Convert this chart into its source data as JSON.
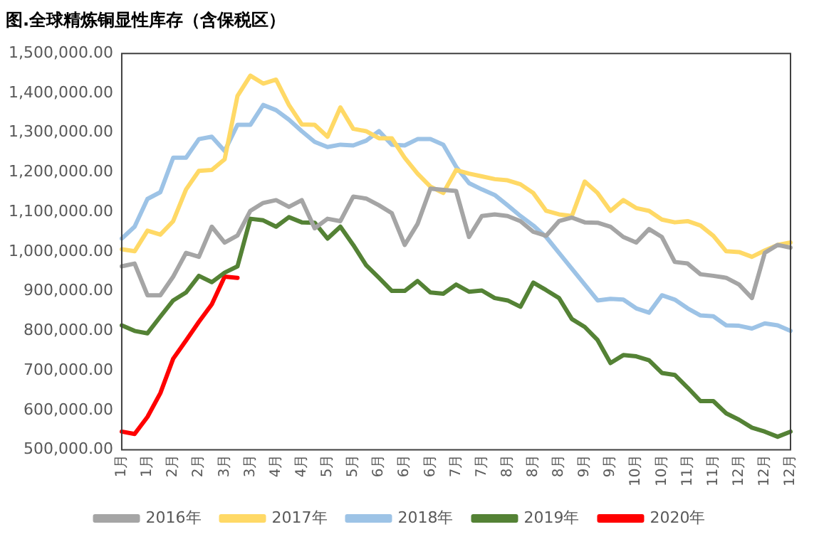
{
  "chart_data": {
    "type": "line",
    "title": "图.全球精炼铜显性库存（含保税区）",
    "categories": [
      "1月",
      null,
      "1月",
      null,
      "2月",
      null,
      "2月",
      null,
      "3月",
      null,
      "3月",
      null,
      "4月",
      null,
      "4月",
      null,
      "5月",
      null,
      "5月",
      null,
      "6月",
      null,
      "6月",
      null,
      "6月",
      null,
      "7月",
      null,
      "7月",
      null,
      "8月",
      null,
      "8月",
      null,
      "8月",
      null,
      "9月",
      null,
      "9月",
      null,
      "10月",
      null,
      "10月",
      null,
      "11月",
      null,
      "11月",
      null,
      "12月",
      null,
      "12月",
      null,
      "12月"
    ],
    "series": [
      {
        "name": "2016年",
        "color": "#a5a5a5",
        "values": [
          963000,
          970000,
          890000,
          890000,
          937000,
          997000,
          987000,
          1063000,
          1023000,
          1041000,
          1103000,
          1123000,
          1130000,
          1113000,
          1130000,
          1059000,
          1083000,
          1077000,
          1139000,
          1134000,
          1117000,
          1097000,
          1017000,
          1070000,
          1159000,
          1156000,
          1153000,
          1037000,
          1090000,
          1094000,
          1090000,
          1077000,
          1050000,
          1040000,
          1077000,
          1086000,
          1074000,
          1073000,
          1063000,
          1037000,
          1023000,
          1057000,
          1037000,
          974000,
          970000,
          943000,
          939000,
          934000,
          917000,
          883000,
          997000,
          1017000,
          1010000
        ]
      },
      {
        "name": "2017年",
        "color": "#ffd966",
        "values": [
          1006000,
          1001000,
          1053000,
          1043000,
          1077000,
          1157000,
          1204000,
          1206000,
          1233000,
          1393000,
          1444000,
          1424000,
          1434000,
          1370000,
          1321000,
          1320000,
          1290000,
          1364000,
          1310000,
          1304000,
          1286000,
          1286000,
          1237000,
          1197000,
          1164000,
          1148000,
          1206000,
          1197000,
          1190000,
          1183000,
          1180000,
          1170000,
          1148000,
          1103000,
          1094000,
          1090000,
          1177000,
          1148000,
          1103000,
          1130000,
          1110000,
          1103000,
          1081000,
          1074000,
          1077000,
          1066000,
          1040000,
          1001000,
          999000,
          987000,
          1003000,
          1017000,
          1023000
        ]
      },
      {
        "name": "2018年",
        "color": "#9dc3e6",
        "values": [
          1033000,
          1063000,
          1133000,
          1150000,
          1237000,
          1237000,
          1284000,
          1290000,
          1254000,
          1320000,
          1320000,
          1370000,
          1357000,
          1333000,
          1304000,
          1277000,
          1264000,
          1270000,
          1268000,
          1280000,
          1304000,
          1270000,
          1268000,
          1284000,
          1284000,
          1270000,
          1214000,
          1173000,
          1157000,
          1143000,
          1117000,
          1090000,
          1066000,
          1037000,
          997000,
          957000,
          917000,
          877000,
          881000,
          879000,
          857000,
          846000,
          890000,
          879000,
          857000,
          839000,
          837000,
          814000,
          813000,
          806000,
          819000,
          814000,
          800000
        ]
      },
      {
        "name": "2019年",
        "color": "#548235",
        "values": [
          814000,
          800000,
          794000,
          836000,
          877000,
          897000,
          939000,
          923000,
          947000,
          963000,
          1083000,
          1079000,
          1063000,
          1087000,
          1074000,
          1073000,
          1033000,
          1063000,
          1017000,
          966000,
          934000,
          901000,
          901000,
          926000,
          897000,
          894000,
          917000,
          899000,
          902000,
          883000,
          877000,
          861000,
          922000,
          903000,
          883000,
          830000,
          810000,
          777000,
          719000,
          739000,
          736000,
          726000,
          694000,
          689000,
          657000,
          623000,
          623000,
          592000,
          576000,
          556000,
          546000,
          533000,
          546000
        ]
      },
      {
        "name": "2020年",
        "color": "#ff0000",
        "values": [
          546000,
          540000,
          583000,
          643000,
          730000,
          776000,
          823000,
          867000,
          937000,
          934000,
          null,
          null,
          null,
          null,
          null,
          null,
          null,
          null,
          null,
          null,
          null,
          null,
          null,
          null,
          null,
          null,
          null,
          null,
          null,
          null,
          null,
          null,
          null,
          null,
          null,
          null,
          null,
          null,
          null,
          null,
          null,
          null,
          null,
          null,
          null,
          null,
          null,
          null,
          null,
          null,
          null,
          null,
          null
        ]
      }
    ],
    "ylim": [
      500000,
      1500000
    ],
    "yticks": [
      {
        "value": 500000,
        "label": "500,000.00"
      },
      {
        "value": 600000,
        "label": "600,000.00"
      },
      {
        "value": 700000,
        "label": "700,000.00"
      },
      {
        "value": 800000,
        "label": "800,000.00"
      },
      {
        "value": 900000,
        "label": "900,000.00"
      },
      {
        "value": 1000000,
        "label": "1,000,000.00"
      },
      {
        "value": 1100000,
        "label": "1,100,000.00"
      },
      {
        "value": 1200000,
        "label": "1,200,000.00"
      },
      {
        "value": 1300000,
        "label": "1,300,000.00"
      },
      {
        "value": 1400000,
        "label": "1,400,000.00"
      },
      {
        "value": 1500000,
        "label": "1,500,000.00"
      }
    ],
    "grid": false,
    "legend": "bottom",
    "marker": "none",
    "line_style": "solid"
  }
}
